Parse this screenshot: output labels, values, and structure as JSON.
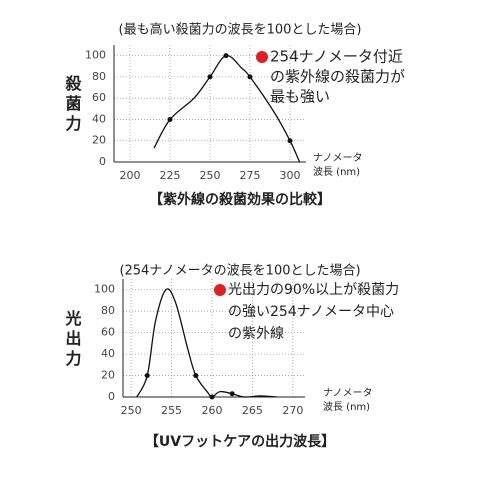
{
  "chart_data": [
    {
      "type": "line",
      "subtitle": "(最も高い殺菌力の波長を100とした場合)",
      "y_label": "殺菌力",
      "x_label": [
        "ナノメータ",
        "波長 (nm)"
      ],
      "annotation": [
        "254ナノメータ付近",
        "の紫外線の殺菌力が",
        "最も強い"
      ],
      "annotation_color": "#e02020",
      "caption": "【紫外線の殺菌効果の比較】",
      "x": [
        215,
        225,
        240,
        250,
        260,
        270,
        275,
        290,
        300,
        306
      ],
      "values": [
        13,
        40,
        60,
        80,
        100,
        88,
        80,
        47,
        20,
        0
      ],
      "points": {
        "x": [
          225,
          250,
          260,
          275,
          300
        ],
        "values": [
          40,
          80,
          100,
          80,
          20
        ]
      },
      "color": "#111",
      "xlim": [
        190,
        310
      ],
      "ylim": [
        0,
        110
      ],
      "xticks": [
        200,
        225,
        250,
        275,
        300
      ],
      "yticks": [
        0,
        20,
        40,
        60,
        80,
        100
      ],
      "grid": true
    },
    {
      "type": "line",
      "subtitle": "(254ナノメータの波長を100とした場合)",
      "y_label": "光出力",
      "x_label": [
        "ナノメータ",
        "波長 (nm)"
      ],
      "annotation": [
        "光出力の90%以上が殺菌力",
        "の強い254ナノメータ中心",
        "の紫外線"
      ],
      "annotation_color": "#e02020",
      "caption": "【UVフットケアの出力波長】",
      "x": [
        250.7,
        252,
        253,
        254.3,
        255.5,
        257,
        258,
        259.5,
        260,
        261,
        262.5,
        264,
        266,
        268
      ],
      "values": [
        0,
        20,
        70,
        100,
        88,
        45,
        20,
        4,
        0,
        5,
        3,
        0,
        1,
        0
      ],
      "points": {
        "x": [
          252,
          258,
          260,
          262.5
        ],
        "values": [
          20,
          20,
          0,
          3
        ]
      },
      "color": "#111",
      "xlim": [
        249,
        271.5
      ],
      "ylim": [
        0,
        110
      ],
      "xticks": [
        250,
        255,
        260,
        265,
        270
      ],
      "yticks": [
        0,
        20,
        40,
        60,
        80,
        100
      ],
      "grid": true
    }
  ]
}
